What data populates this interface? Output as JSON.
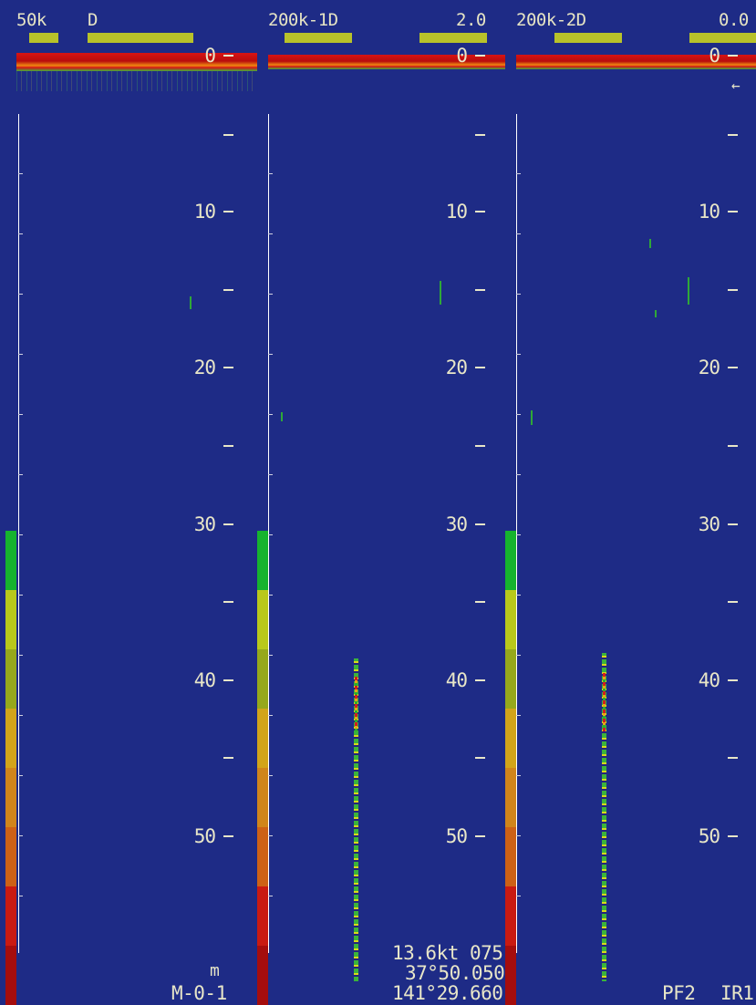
{
  "panels": [
    {
      "freq_label": "50k",
      "mode_label": "D",
      "gain_value": "",
      "depth_labels": [
        "0",
        "10",
        "20",
        "30",
        "40",
        "50"
      ],
      "bottom_unit": "m",
      "bottom_text": "M-0-1"
    },
    {
      "freq_label": "200k-1D",
      "mode_label": "",
      "gain_value": "2.0",
      "depth_labels": [
        "0",
        "10",
        "20",
        "30",
        "40",
        "50"
      ],
      "nav_lines": [
        "13.6kt 075°T",
        "37°50.050'N",
        "141°29.660'E"
      ]
    },
    {
      "freq_label": "200k-2D",
      "mode_label": "",
      "gain_value": "0.0",
      "depth_labels": [
        "0",
        "10",
        "20",
        "30",
        "40",
        "50"
      ],
      "bottom_text_left": "PF2",
      "bottom_text_right": "IR1"
    }
  ],
  "colors": {
    "background": "#1e2b86",
    "indicator": "#b8c22a",
    "color_scale": [
      "#16b32e",
      "#b9c81b",
      "#96a81c",
      "#d2a41a",
      "#d0851b",
      "#cd6116",
      "#c91a12",
      "#a50d0d"
    ]
  },
  "icons": {
    "arrow": "left-arrow-icon"
  }
}
